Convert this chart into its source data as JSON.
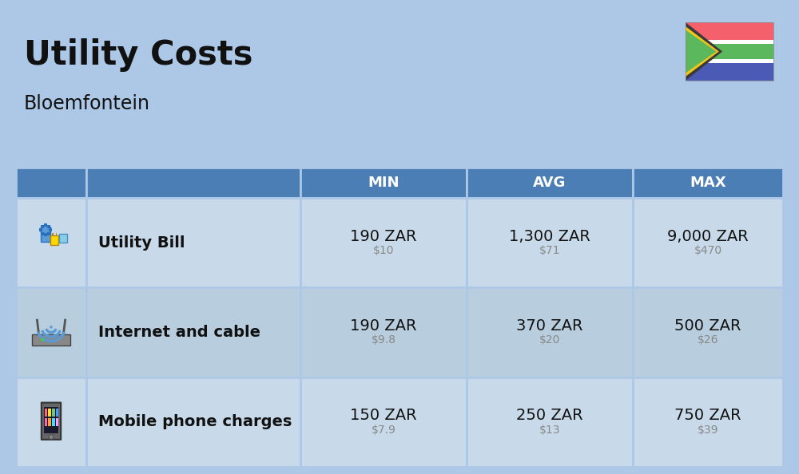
{
  "title": "Utility Costs",
  "subtitle": "Bloemfontein",
  "bg_color": "#adc8e6",
  "header_bg": "#4a7eb5",
  "header_text_color": "#ffffff",
  "row_bg_light": "#c8daea",
  "row_bg_dark": "#b8cedf",
  "col_headers": [
    "MIN",
    "AVG",
    "MAX"
  ],
  "rows": [
    {
      "label": "Utility Bill",
      "min_zar": "190 ZAR",
      "min_usd": "$10",
      "avg_zar": "1,300 ZAR",
      "avg_usd": "$71",
      "max_zar": "9,000 ZAR",
      "max_usd": "$470",
      "icon": "utility"
    },
    {
      "label": "Internet and cable",
      "min_zar": "190 ZAR",
      "min_usd": "$9.8",
      "avg_zar": "370 ZAR",
      "avg_usd": "$20",
      "max_zar": "500 ZAR",
      "max_usd": "$26",
      "icon": "internet"
    },
    {
      "label": "Mobile phone charges",
      "min_zar": "150 ZAR",
      "min_usd": "$7.9",
      "avg_zar": "250 ZAR",
      "avg_usd": "$13",
      "max_zar": "750 ZAR",
      "max_usd": "$39",
      "icon": "mobile"
    }
  ],
  "title_fontsize": 30,
  "subtitle_fontsize": 17,
  "header_fontsize": 13,
  "cell_zar_fontsize": 14,
  "cell_usd_fontsize": 10,
  "label_fontsize": 14
}
